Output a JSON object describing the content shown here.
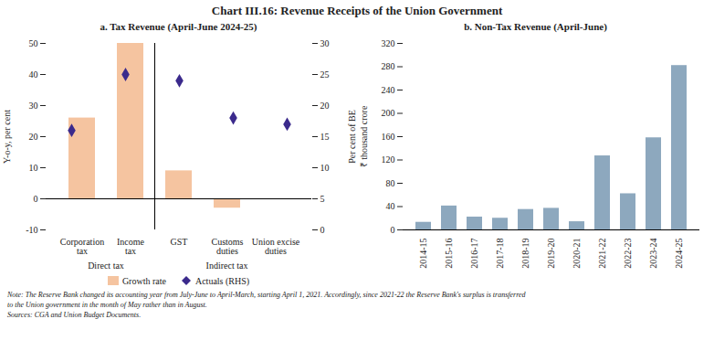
{
  "title": "Chart III.16: Revenue Receipts of the Union Government",
  "notes": [
    "Note: The Reserve Bank changed its accounting year from July-June to April-March, starting April 1, 2021. Accordingly, since 2021-22 the Reserve Bank's surplus is transferred",
    "to the Union government in the month of May rather than in August.",
    "Sources: CGA and Union Budget Documents."
  ],
  "chart_data": [
    {
      "type": "bar",
      "title": "a. Tax Revenue (April-June 2024-25)",
      "categories": [
        "Corporation\ntax",
        "Income\ntax",
        "GST",
        "Customs\nduties",
        "Union excise\nduties"
      ],
      "groups": [
        {
          "name": "Direct tax",
          "categories": [
            "Corporation\ntax",
            "Income\ntax"
          ]
        },
        {
          "name": "Indirect tax",
          "categories": [
            "GST",
            "Customs\nduties",
            "Union excise\nduties"
          ]
        }
      ],
      "series": [
        {
          "name": "Growth rate",
          "type": "bar",
          "color": "#f5c4a0",
          "values": [
            26,
            50,
            9,
            -3,
            0
          ]
        },
        {
          "name": "Actuals (RHS)",
          "type": "scatter",
          "marker": "diamond",
          "color": "#3b2a8c",
          "axis": "y2",
          "values": [
            16,
            25,
            24,
            18,
            17
          ]
        }
      ],
      "ylim": [
        -10,
        50
      ],
      "yticks": [
        -10,
        0,
        10,
        20,
        30,
        40,
        50
      ],
      "ylabel": "Y-o-y, per cent",
      "y2lim": [
        0,
        30
      ],
      "y2ticks": [
        0,
        5,
        10,
        15,
        20,
        25,
        30
      ],
      "y2label": "Per cent of BE",
      "legend": "bottom",
      "grid": false
    },
    {
      "type": "bar",
      "title": "b. Non-Tax Revenue (April-June)",
      "categories": [
        "2014-15",
        "2015-16",
        "2016-17",
        "2017-18",
        "2018-19",
        "2019-20",
        "2020-21",
        "2021-22",
        "2022-23",
        "2023-24",
        "2024-25"
      ],
      "values": [
        13,
        41,
        22,
        20,
        35,
        37,
        14,
        127,
        62,
        158,
        282
      ],
      "color": "#8da8be",
      "ylim": [
        0,
        320
      ],
      "yticks": [
        0,
        40,
        80,
        120,
        160,
        200,
        240,
        280,
        320
      ],
      "ylabel": "₹ thousand crore",
      "grid": false
    }
  ]
}
